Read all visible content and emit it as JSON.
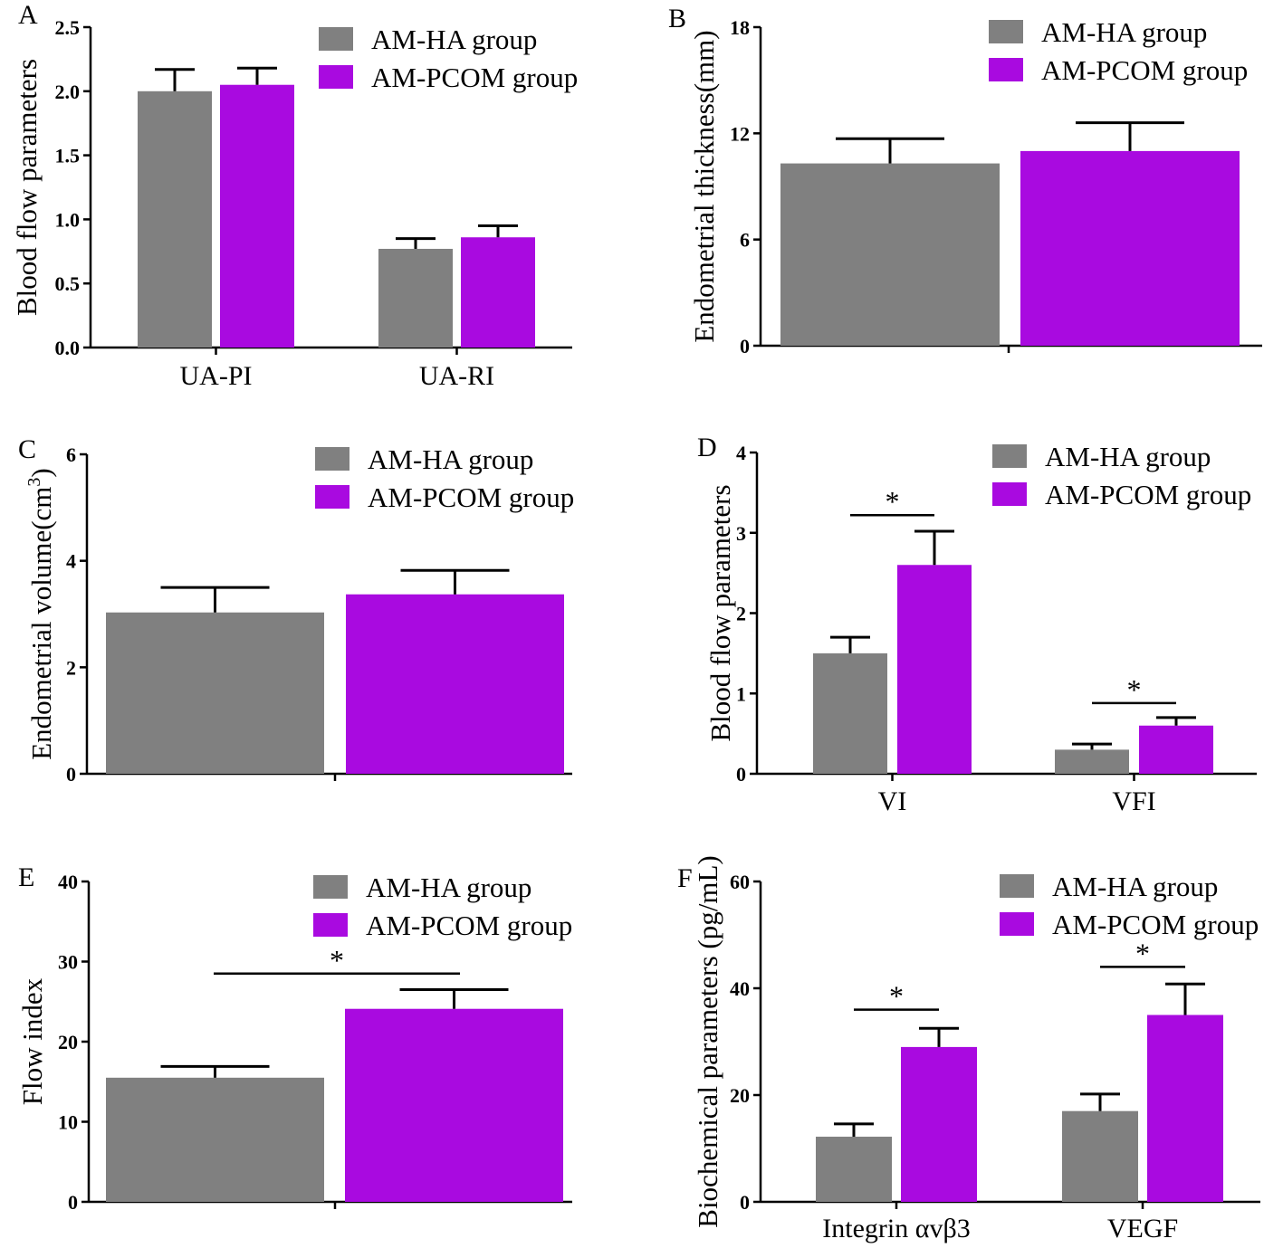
{
  "colors": {
    "ha": "#808080",
    "pcom": "#a90ae0",
    "axis": "#000000"
  },
  "chart_data": [
    {
      "panel": "A",
      "type": "bar",
      "ylabel": "Blood flow parameters",
      "ylim": [
        0,
        2.5
      ],
      "yticks": [
        "0.0",
        "0.5",
        "1.0",
        "1.5",
        "2.0",
        "2.5"
      ],
      "categories": [
        "UA-PI",
        "UA-RI"
      ],
      "series": [
        {
          "name": "AM-HA group",
          "values": [
            2.0,
            0.77
          ],
          "errors": [
            0.17,
            0.08
          ]
        },
        {
          "name": "AM-PCOM group",
          "values": [
            2.05,
            0.86
          ],
          "errors": [
            0.13,
            0.09
          ]
        }
      ],
      "significance": [],
      "legend": "top-right"
    },
    {
      "panel": "B",
      "type": "bar",
      "ylabel": "Endometrial thickness(mm)",
      "ylim": [
        0,
        18
      ],
      "yticks": [
        "0",
        "6",
        "12",
        "18"
      ],
      "categories": [
        ""
      ],
      "series": [
        {
          "name": "AM-HA group",
          "values": [
            10.3
          ],
          "errors": [
            1.4
          ]
        },
        {
          "name": "AM-PCOM group",
          "values": [
            11.0
          ],
          "errors": [
            1.6
          ]
        }
      ],
      "significance": [],
      "legend": "top-right"
    },
    {
      "panel": "C",
      "type": "bar",
      "ylabel": "Endometrial volume(cm",
      "ylabel_sup": "3",
      "ylabel_end": ")",
      "ylim": [
        0,
        6
      ],
      "yticks": [
        "0",
        "2",
        "4",
        "6"
      ],
      "categories": [
        ""
      ],
      "series": [
        {
          "name": "AM-HA group",
          "values": [
            3.03
          ],
          "errors": [
            0.47
          ]
        },
        {
          "name": "AM-PCOM group",
          "values": [
            3.37
          ],
          "errors": [
            0.45
          ]
        }
      ],
      "significance": [],
      "legend": "top-right"
    },
    {
      "panel": "D",
      "type": "bar",
      "ylabel": "Blood flow parameters",
      "ylim": [
        0,
        4
      ],
      "yticks": [
        "0",
        "1",
        "2",
        "3",
        "4"
      ],
      "categories": [
        "VI",
        "VFI"
      ],
      "series": [
        {
          "name": "AM-HA group",
          "values": [
            1.5,
            0.3
          ],
          "errors": [
            0.2,
            0.07
          ]
        },
        {
          "name": "AM-PCOM group",
          "values": [
            2.6,
            0.6
          ],
          "errors": [
            0.42,
            0.1
          ]
        }
      ],
      "significance": [
        {
          "category": 0,
          "level": 3.22,
          "label": "*"
        },
        {
          "category": 1,
          "level": 0.88,
          "label": "*"
        }
      ],
      "legend": "top-right"
    },
    {
      "panel": "E",
      "type": "bar",
      "ylabel": "Flow index",
      "ylim": [
        0,
        40
      ],
      "yticks": [
        "0",
        "10",
        "20",
        "30",
        "40"
      ],
      "categories": [
        ""
      ],
      "series": [
        {
          "name": "AM-HA group",
          "values": [
            15.5
          ],
          "errors": [
            1.4
          ]
        },
        {
          "name": "AM-PCOM group",
          "values": [
            24.1
          ],
          "errors": [
            2.4
          ]
        }
      ],
      "significance": [
        {
          "category": 0,
          "level": 28.5,
          "label": "*"
        }
      ],
      "legend": "top-right"
    },
    {
      "panel": "F",
      "type": "bar",
      "ylabel": "Biochemical parameters (pg/mL)",
      "ylim": [
        0,
        60
      ],
      "yticks": [
        "0",
        "20",
        "40",
        "60"
      ],
      "categories": [
        "Integrin  αvβ3",
        "VEGF"
      ],
      "series": [
        {
          "name": "AM-HA group",
          "values": [
            12.2,
            17.0
          ],
          "errors": [
            2.4,
            3.2
          ]
        },
        {
          "name": "AM-PCOM group",
          "values": [
            29.0,
            35.0
          ],
          "errors": [
            3.5,
            5.8
          ]
        }
      ],
      "significance": [
        {
          "category": 0,
          "level": 36.0,
          "label": "*"
        },
        {
          "category": 1,
          "level": 44.0,
          "label": "*"
        }
      ],
      "legend": "top-right"
    }
  ]
}
